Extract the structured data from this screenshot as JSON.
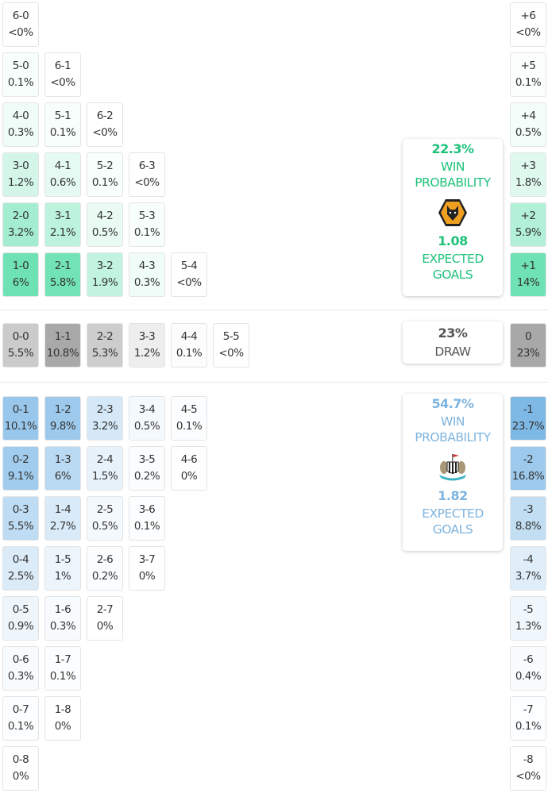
{
  "colors": {
    "home": "#1fc27a",
    "away": "#7eb4df",
    "draw": "#555555"
  },
  "home_scores": [
    [
      {
        "score": "6-0",
        "pct": "<0%"
      }
    ],
    [
      {
        "score": "5-0",
        "pct": "0.1%"
      },
      {
        "score": "6-1",
        "pct": "<0%"
      }
    ],
    [
      {
        "score": "4-0",
        "pct": "0.3%"
      },
      {
        "score": "5-1",
        "pct": "0.1%"
      },
      {
        "score": "6-2",
        "pct": "<0%"
      }
    ],
    [
      {
        "score": "3-0",
        "pct": "1.2%"
      },
      {
        "score": "4-1",
        "pct": "0.6%"
      },
      {
        "score": "5-2",
        "pct": "0.1%"
      },
      {
        "score": "6-3",
        "pct": "<0%"
      }
    ],
    [
      {
        "score": "2-0",
        "pct": "3.2%"
      },
      {
        "score": "3-1",
        "pct": "2.1%"
      },
      {
        "score": "4-2",
        "pct": "0.5%"
      },
      {
        "score": "5-3",
        "pct": "0.1%"
      }
    ],
    [
      {
        "score": "1-0",
        "pct": "6%"
      },
      {
        "score": "2-1",
        "pct": "5.8%"
      },
      {
        "score": "3-2",
        "pct": "1.9%"
      },
      {
        "score": "4-3",
        "pct": "0.3%"
      },
      {
        "score": "5-4",
        "pct": "<0%"
      }
    ]
  ],
  "draw_scores": [
    {
      "score": "0-0",
      "pct": "5.5%"
    },
    {
      "score": "1-1",
      "pct": "10.8%"
    },
    {
      "score": "2-2",
      "pct": "5.3%"
    },
    {
      "score": "3-3",
      "pct": "1.2%"
    },
    {
      "score": "4-4",
      "pct": "0.1%"
    },
    {
      "score": "5-5",
      "pct": "<0%"
    }
  ],
  "away_scores": [
    [
      {
        "score": "0-1",
        "pct": "10.1%"
      },
      {
        "score": "1-2",
        "pct": "9.8%"
      },
      {
        "score": "2-3",
        "pct": "3.2%"
      },
      {
        "score": "3-4",
        "pct": "0.5%"
      },
      {
        "score": "4-5",
        "pct": "0.1%"
      }
    ],
    [
      {
        "score": "0-2",
        "pct": "9.1%"
      },
      {
        "score": "1-3",
        "pct": "6%"
      },
      {
        "score": "2-4",
        "pct": "1.5%"
      },
      {
        "score": "3-5",
        "pct": "0.2%"
      },
      {
        "score": "4-6",
        "pct": "0%"
      }
    ],
    [
      {
        "score": "0-3",
        "pct": "5.5%"
      },
      {
        "score": "1-4",
        "pct": "2.7%"
      },
      {
        "score": "2-5",
        "pct": "0.5%"
      },
      {
        "score": "3-6",
        "pct": "0.1%"
      }
    ],
    [
      {
        "score": "0-4",
        "pct": "2.5%"
      },
      {
        "score": "1-5",
        "pct": "1%"
      },
      {
        "score": "2-6",
        "pct": "0.2%"
      },
      {
        "score": "3-7",
        "pct": "0%"
      }
    ],
    [
      {
        "score": "0-5",
        "pct": "0.9%"
      },
      {
        "score": "1-6",
        "pct": "0.3%"
      },
      {
        "score": "2-7",
        "pct": "0%"
      }
    ],
    [
      {
        "score": "0-6",
        "pct": "0.3%"
      },
      {
        "score": "1-7",
        "pct": "0.1%"
      }
    ],
    [
      {
        "score": "0-7",
        "pct": "0.1%"
      },
      {
        "score": "1-8",
        "pct": "0%"
      }
    ],
    [
      {
        "score": "0-8",
        "pct": "0%"
      }
    ]
  ],
  "home_margins": [
    {
      "margin": "+6",
      "pct": "<0%"
    },
    {
      "margin": "+5",
      "pct": "0.1%"
    },
    {
      "margin": "+4",
      "pct": "0.5%"
    },
    {
      "margin": "+3",
      "pct": "1.8%"
    },
    {
      "margin": "+2",
      "pct": "5.9%"
    },
    {
      "margin": "+1",
      "pct": "14%"
    }
  ],
  "draw_margin": {
    "margin": "0",
    "pct": "23%"
  },
  "away_margins": [
    {
      "margin": "-1",
      "pct": "23.7%"
    },
    {
      "margin": "-2",
      "pct": "16.8%"
    },
    {
      "margin": "-3",
      "pct": "8.8%"
    },
    {
      "margin": "-4",
      "pct": "3.7%"
    },
    {
      "margin": "-5",
      "pct": "1.3%"
    },
    {
      "margin": "-6",
      "pct": "0.4%"
    },
    {
      "margin": "-7",
      "pct": "0.1%"
    },
    {
      "margin": "-8",
      "pct": "<0%"
    }
  ],
  "home_card": {
    "win_pct": "22.3%",
    "win_label_1": "WIN",
    "win_label_2": "PROBABILITY",
    "xg": "1.08",
    "xg_label_1": "EXPECTED",
    "xg_label_2": "GOALS",
    "crest": "wolves-crest"
  },
  "draw_card": {
    "pct": "23%",
    "label": "DRAW"
  },
  "away_card": {
    "win_pct": "54.7%",
    "win_label_1": "WIN",
    "win_label_2": "PROBABILITY",
    "xg": "1.82",
    "xg_label_1": "EXPECTED",
    "xg_label_2": "GOALS",
    "crest": "newcastle-crest"
  }
}
